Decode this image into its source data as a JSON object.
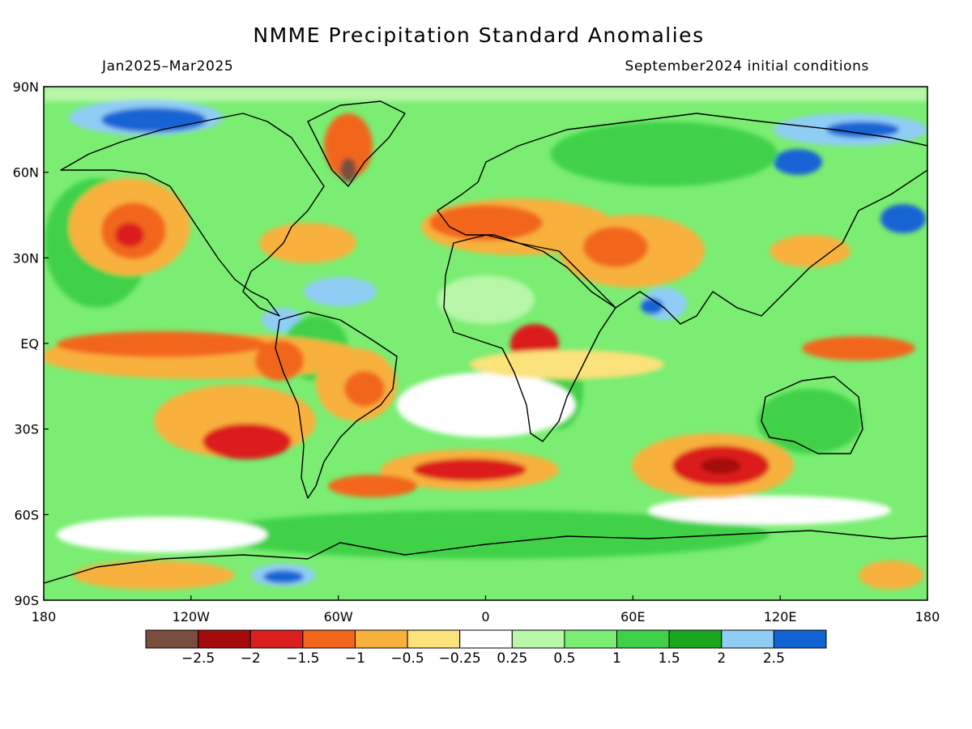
{
  "title": "NMME Precipitation Standard Anomalies",
  "subtitle_left": "Jan2025–Mar2025",
  "subtitle_right": "September2024 initial conditions",
  "lat_labels": [
    "90N",
    "60N",
    "30N",
    "EQ",
    "30S",
    "60S",
    "90S"
  ],
  "lon_labels": [
    "180",
    "120W",
    "60W",
    "0",
    "60E",
    "120E",
    "180"
  ],
  "colorbar": {
    "colors": [
      "#7a4e3e",
      "#a50a0a",
      "#dc1e1e",
      "#f2661c",
      "#f8b13c",
      "#fbe27a",
      "#ffffff",
      "#b8f7a8",
      "#7aed72",
      "#3fd14a",
      "#1aa71e",
      "#8fcdf5",
      "#1263d4"
    ],
    "tick_labels": [
      "−2.5",
      "−2",
      "−1.5",
      "−1",
      "−0.5",
      "−0.25",
      "0.25",
      "0.5",
      "1",
      "1.5",
      "2",
      "2.5"
    ]
  }
}
